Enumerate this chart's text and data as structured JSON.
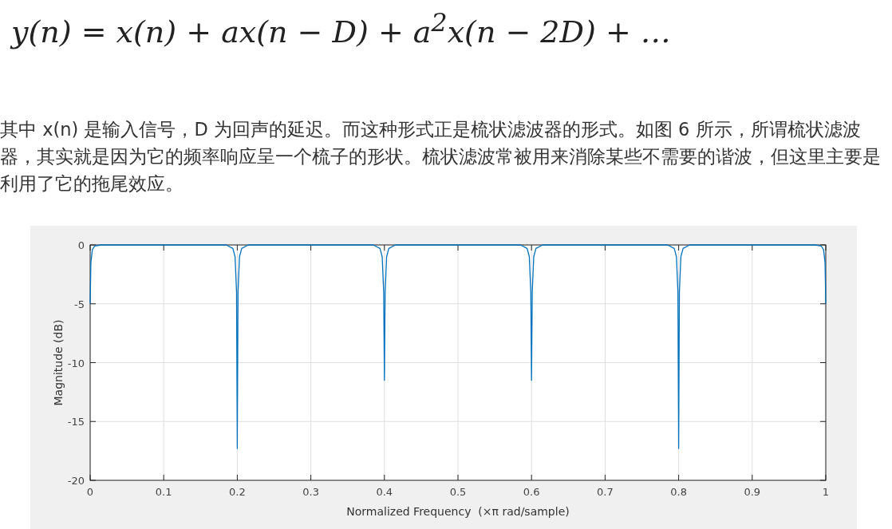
{
  "chart_data": {
    "type": "line",
    "annotations": [
      "y(n) = x(n) + ax(n − D) + a$^{2}$x(n − 2D) + …",
      "其中 x(n) 是输入信号，D 为回声的延迟。而这种形式正是梳状滤波器的形式。如图 6 所示，所谓梳状滤波器，其实就是因为它的频率响应呈一个梳子的形状。梳状滤波常被用来消除某些不需要的谐波，但这里主要是利用了它的拖尾效应。"
    ],
    "xlabel": "Normalized Frequency  (×π rad/sample)",
    "ylabel": "Magnitude (dB)",
    "xlim": [
      0,
      1
    ],
    "ylim": [
      -20,
      0
    ],
    "xticks": [
      0,
      0.1,
      0.2,
      0.3,
      0.4,
      0.5,
      0.6,
      0.7,
      0.8,
      0.9,
      1
    ],
    "yticks": [
      -20,
      -15,
      -10,
      -5,
      0
    ],
    "grid": true,
    "color": "#0072bd",
    "x": [
      0,
      0.001,
      0.003,
      0.006,
      0.015,
      0.185,
      0.194,
      0.197,
      0.199,
      0.2,
      0.201,
      0.203,
      0.206,
      0.215,
      0.385,
      0.394,
      0.397,
      0.399,
      0.4,
      0.401,
      0.403,
      0.406,
      0.415,
      0.585,
      0.594,
      0.597,
      0.599,
      0.6,
      0.601,
      0.603,
      0.606,
      0.615,
      0.785,
      0.794,
      0.797,
      0.799,
      0.8,
      0.801,
      0.803,
      0.806,
      0.815,
      0.985,
      0.994,
      0.997,
      0.999,
      1
    ],
    "values": [
      -5,
      -1.5,
      -0.4,
      -0.1,
      0,
      0,
      -0.3,
      -1,
      -4,
      -17.3,
      -4,
      -1,
      -0.3,
      0,
      0,
      -0.3,
      -1,
      -4,
      -11.5,
      -4,
      -1,
      -0.3,
      0,
      0,
      -0.3,
      -1,
      -4,
      -11.5,
      -4,
      -1,
      -0.3,
      0,
      0,
      -0.3,
      -1,
      -4,
      -17.3,
      -4,
      -1,
      -0.3,
      0,
      0,
      -0.1,
      -0.4,
      -1.5,
      -5
    ]
  }
}
